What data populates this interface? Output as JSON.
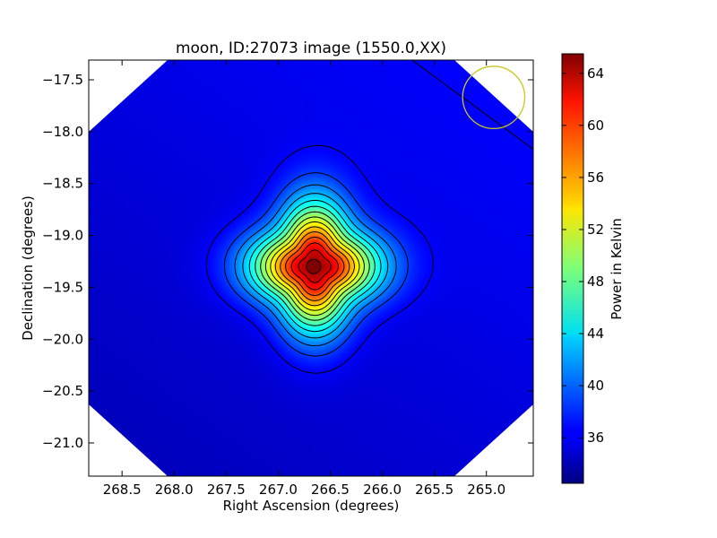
{
  "chart_data": {
    "type": "heatmap",
    "title": "moon, ID:27073 image (1550.0,XX)",
    "xlabel": "Right Ascension (degrees)",
    "ylabel": "Declination (degrees)",
    "xlim": [
      268.82,
      264.55
    ],
    "ylim": [
      -21.32,
      -17.31
    ],
    "xticks": [
      268.5,
      268.0,
      267.5,
      267.0,
      266.5,
      266.0,
      265.5,
      265.0
    ],
    "xtick_labels": [
      "268.5",
      "268.0",
      "267.5",
      "267.0",
      "266.5",
      "266.0",
      "265.5",
      "265.0"
    ],
    "yticks": [
      -17.5,
      -18.0,
      -18.5,
      -19.0,
      -19.5,
      -20.0,
      -20.5,
      -21.0
    ],
    "ytick_labels": [
      "−17.5",
      "−18.0",
      "−18.5",
      "−19.0",
      "−19.5",
      "−20.0",
      "−20.5",
      "−21.0"
    ],
    "colorbar": {
      "label": "Power in Kelvin",
      "range": [
        32.5,
        65.5
      ],
      "ticks": [
        36,
        40,
        44,
        48,
        52,
        56,
        60,
        64
      ],
      "tick_labels": [
        "36",
        "40",
        "44",
        "48",
        "52",
        "56",
        "60",
        "64"
      ],
      "colormap": "jet"
    },
    "source": {
      "center_ra": 266.65,
      "center_dec": -19.3,
      "peak_kelvin": 65.5,
      "background_kelvin": 35.5
    },
    "marker_circle": {
      "ra": 264.93,
      "dec": -17.67,
      "radius_deg": 0.3,
      "color": "#c8c81e"
    },
    "source_dot": {
      "ra": 266.66,
      "dec": -19.3,
      "color": "#800000"
    },
    "contour_color": "#000000",
    "corner_cut_color": "#ffffff",
    "grid": false
  }
}
